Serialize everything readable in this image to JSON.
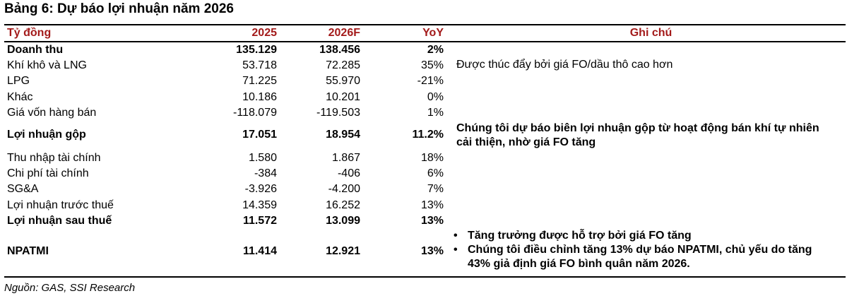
{
  "title": "Bảng 6: Dự báo lợi nhuận năm 2026",
  "header": {
    "label": "Tỷ đồng",
    "y2025": "2025",
    "y2026": "2026F",
    "yoy": "YoY",
    "note": "Ghi chú"
  },
  "rows": [
    {
      "label": "Doanh thu",
      "y2025": "135.129",
      "y2026": "138.456",
      "yoy": "2%"
    },
    {
      "label": "Khí khô và LNG",
      "y2025": "53.718",
      "y2026": "72.285",
      "yoy": "35%"
    },
    {
      "label": "LPG",
      "y2025": "71.225",
      "y2026": "55.970",
      "yoy": "-21%"
    },
    {
      "label": "Khác",
      "y2025": "10.186",
      "y2026": "10.201",
      "yoy": "0%"
    },
    {
      "label": "Giá vốn hàng bán",
      "y2025": "-118.079",
      "y2026": "-119.503",
      "yoy": "1%"
    },
    {
      "label": "Lợi nhuận gộp",
      "y2025": "17.051",
      "y2026": "18.954",
      "yoy": "11.2%"
    },
    {
      "label": "Thu nhập tài chính",
      "y2025": "1.580",
      "y2026": "1.867",
      "yoy": "18%"
    },
    {
      "label": "Chi phí tài chính",
      "y2025": "-384",
      "y2026": "-406",
      "yoy": "6%"
    },
    {
      "label": "SG&A",
      "y2025": "-3.926",
      "y2026": "-4.200",
      "yoy": "7%"
    },
    {
      "label": "Lợi nhuận trước thuế",
      "y2025": "14.359",
      "y2026": "16.252",
      "yoy": "13%"
    },
    {
      "label": "Lợi nhuận sau thuế",
      "y2025": "11.572",
      "y2026": "13.099",
      "yoy": "13%"
    },
    {
      "label": "NPATMI",
      "y2025": "11.414",
      "y2026": "12.921",
      "yoy": "13%"
    }
  ],
  "notes": {
    "khi_kho": "Được thúc đẩy bởi giá FO/dầu thô cao hơn",
    "loi_nhuan_gop": "Chúng tôi dự báo biên lợi nhuận gộp từ hoạt động bán khí tự nhiên cải thiện, nhờ giá FO tăng",
    "npatmi": [
      "Tăng trưởng được hỗ trợ bởi giá FO tăng",
      "Chúng tôi điều chỉnh tăng 13% dự báo NPATMI, chủ yếu do tăng 43% giả định giá FO bình quân năm 2026."
    ],
    "bullet_symbol": "•"
  },
  "source": "Nguồn: GAS, SSI Research"
}
